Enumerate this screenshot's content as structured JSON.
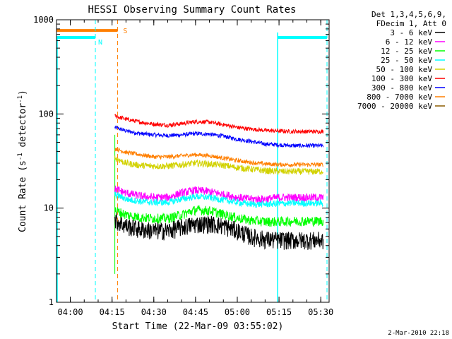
{
  "chart_data": {
    "type": "line",
    "title": "HESSI Observing Summary Count Rates",
    "xlabel": "Start Time (22-Mar-09 03:55:02)",
    "ylabel": "Count Rate (s^-1 detector^-1)",
    "ylabel_parts": {
      "base": "Count Rate (s",
      "exp1": "-1",
      "mid": " detector",
      "exp2": "-1",
      "end": ")"
    },
    "y_scale": "log",
    "ylim": [
      1,
      1000
    ],
    "xlim": [
      "03:55:02",
      "05:33:00"
    ],
    "x_ticks": [
      "04:00",
      "04:15",
      "04:30",
      "04:45",
      "05:00",
      "05:15",
      "05:30"
    ],
    "y_ticks": [
      "1",
      "10",
      "100",
      "1000"
    ],
    "grid": false,
    "legend_placement": "top-right outside plot",
    "legend_header": [
      "Det 1,3,4,5,6,9,",
      "FDecim 1, Att 0"
    ],
    "series": [
      {
        "name": "3 - 6 keV",
        "color": "#000000",
        "x": [
          "04:16",
          "04:20",
          "04:25",
          "04:30",
          "04:35",
          "04:40",
          "04:45",
          "04:50",
          "04:55",
          "05:00",
          "05:05",
          "05:10",
          "05:15",
          "05:20",
          "05:25",
          "05:31"
        ],
        "y": [
          7.5,
          6.5,
          6.0,
          5.8,
          5.8,
          6.3,
          6.8,
          6.9,
          6.5,
          5.8,
          5.0,
          4.7,
          4.6,
          4.6,
          4.6,
          4.6
        ]
      },
      {
        "name": "6 - 12 keV",
        "color": "#ff00ff",
        "x": [
          "04:16",
          "04:20",
          "04:25",
          "04:30",
          "04:35",
          "04:40",
          "04:45",
          "04:50",
          "04:55",
          "05:00",
          "05:05",
          "05:10",
          "05:15",
          "05:20",
          "05:25",
          "05:31"
        ],
        "y": [
          16,
          14.5,
          13.5,
          13,
          13,
          14.5,
          15.5,
          15,
          14,
          13,
          12.5,
          12.5,
          13,
          13,
          13,
          13
        ]
      },
      {
        "name": "12 - 25 keV",
        "color": "#00ff00",
        "x": [
          "04:16",
          "04:20",
          "04:25",
          "04:30",
          "04:35",
          "04:40",
          "04:45",
          "04:50",
          "04:55",
          "05:00",
          "05:05",
          "05:10",
          "05:15",
          "05:20",
          "05:25",
          "05:31"
        ],
        "y": [
          9.5,
          8.5,
          8.0,
          7.8,
          7.8,
          8.5,
          9.6,
          9.4,
          8.6,
          7.9,
          7.4,
          7.2,
          7.2,
          7.3,
          7.3,
          7.3
        ]
      },
      {
        "name": "25 - 50 keV",
        "color": "#00ffff",
        "x": [
          "04:16",
          "04:20",
          "04:25",
          "04:30",
          "04:35",
          "04:40",
          "04:45",
          "04:50",
          "04:55",
          "05:00",
          "05:05",
          "05:10",
          "05:15",
          "05:20",
          "05:25",
          "05:31"
        ],
        "y": [
          14,
          12.5,
          11.8,
          11.5,
          11.5,
          12.5,
          13.3,
          13,
          12.2,
          11.5,
          11,
          11,
          11.2,
          11.3,
          11.3,
          11.3
        ]
      },
      {
        "name": "50 - 100 keV",
        "color": "#d2d200",
        "x": [
          "04:16",
          "04:20",
          "04:25",
          "04:30",
          "04:35",
          "04:40",
          "04:45",
          "04:50",
          "04:55",
          "05:00",
          "05:05",
          "05:10",
          "05:15",
          "05:20",
          "05:25",
          "05:31"
        ],
        "y": [
          34,
          30,
          28.5,
          28,
          28,
          29,
          30,
          29.5,
          28.5,
          27,
          26,
          25,
          24.5,
          24.5,
          24.5,
          24.5
        ]
      },
      {
        "name": "100 - 300 keV",
        "color": "#ff0000",
        "x": [
          "04:16",
          "04:20",
          "04:25",
          "04:30",
          "04:35",
          "04:40",
          "04:45",
          "04:50",
          "04:55",
          "05:00",
          "05:05",
          "05:10",
          "05:15",
          "05:20",
          "05:25",
          "05:31"
        ],
        "y": [
          95,
          88,
          82,
          78,
          76,
          79,
          83,
          82,
          77,
          72,
          69,
          67,
          66,
          65,
          65,
          65
        ]
      },
      {
        "name": "300 - 800 keV",
        "color": "#0000ff",
        "x": [
          "04:16",
          "04:20",
          "04:25",
          "04:30",
          "04:35",
          "04:40",
          "04:45",
          "04:50",
          "04:55",
          "05:00",
          "05:05",
          "05:10",
          "05:15",
          "05:20",
          "05:25",
          "05:31"
        ],
        "y": [
          72,
          66,
          62,
          60,
          59,
          60,
          62,
          61,
          58,
          54,
          51,
          48,
          47,
          46,
          46,
          46
        ]
      },
      {
        "name": "800 - 7000 keV",
        "color": "#ff7f00",
        "x": [
          "04:16",
          "04:20",
          "04:25",
          "04:30",
          "04:35",
          "04:40",
          "04:45",
          "04:50",
          "04:55",
          "05:00",
          "05:05",
          "05:10",
          "05:15",
          "05:20",
          "05:25",
          "05:31"
        ],
        "y": [
          43,
          39,
          37,
          35,
          35,
          36,
          37,
          36,
          34,
          32,
          30.5,
          29.5,
          29,
          29,
          29,
          29
        ]
      },
      {
        "name": "7000 - 20000 keV",
        "color": "#8b5a00",
        "x": [],
        "y": []
      }
    ],
    "annotations": [
      {
        "label": "N",
        "start": "04:11",
        "color": "#00ffff"
      },
      {
        "label": "S",
        "start": "04:15",
        "color": "#ff7f00"
      }
    ],
    "footer": "2-Mar-2010 22:18"
  }
}
